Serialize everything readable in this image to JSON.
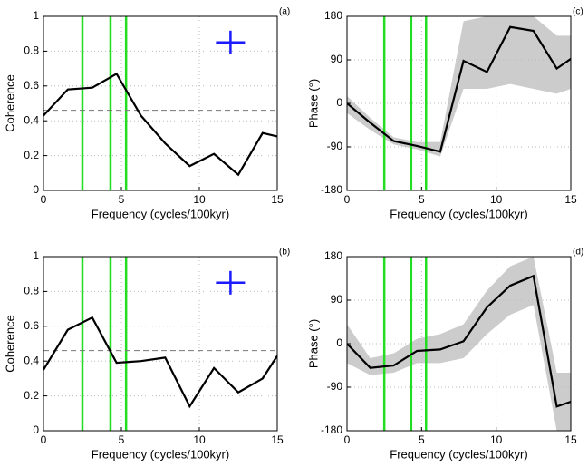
{
  "chart_data": [
    {
      "type": "line",
      "panel_label": "(a)",
      "xlabel": "Frequency (cycles/100kyr)",
      "ylabel": "Coherence",
      "x": [
        0,
        1.56,
        3.13,
        4.69,
        6.25,
        7.81,
        9.38,
        10.94,
        12.5,
        14.06,
        15
      ],
      "series": [
        {
          "color": "#000000",
          "values": [
            0.43,
            0.58,
            0.59,
            0.67,
            0.43,
            0.27,
            0.14,
            0.21,
            0.09,
            0.33,
            0.31
          ]
        }
      ],
      "xlim": [
        0,
        15
      ],
      "xticks": [
        0,
        5,
        10,
        15
      ],
      "ylim": [
        0,
        1
      ],
      "yticks": [
        0,
        0.2,
        0.4,
        0.6,
        0.8,
        1
      ],
      "grid": true,
      "vlines": [
        2.5,
        4.3,
        5.3
      ],
      "vline_color": "#22dd22",
      "threshold": 0.46,
      "cross": {
        "x": 12,
        "y": 0.85,
        "color": "#1a1aff"
      }
    },
    {
      "type": "line",
      "panel_label": "(c)",
      "xlabel": "Frequency (cycles/100kyr)",
      "ylabel": "Phase (°)",
      "x": [
        0,
        1.56,
        3.13,
        4.69,
        6.25,
        7.81,
        9.38,
        10.94,
        12.5,
        14.06,
        15
      ],
      "series": [
        {
          "color": "#000000",
          "values": [
            0,
            -40,
            -78,
            -88,
            -100,
            88,
            65,
            158,
            150,
            72,
            92
          ]
        }
      ],
      "band": {
        "color": "#cccccc",
        "lower": [
          -20,
          -55,
          -85,
          -95,
          -110,
          30,
          30,
          40,
          30,
          20,
          30
        ],
        "upper": [
          15,
          -30,
          -70,
          -80,
          -80,
          170,
          180,
          180,
          180,
          140,
          140
        ]
      },
      "xlim": [
        0,
        15
      ],
      "xticks": [
        0,
        5,
        10,
        15
      ],
      "ylim": [
        -180,
        180
      ],
      "yticks": [
        -180,
        -90,
        0,
        90,
        180
      ],
      "grid": true,
      "vlines": [
        2.5,
        4.3,
        5.3
      ],
      "vline_color": "#22dd22"
    },
    {
      "type": "line",
      "panel_label": "(b)",
      "xlabel": "Frequency (cycles/100kyr)",
      "ylabel": "Coherence",
      "x": [
        0,
        1.56,
        3.13,
        4.69,
        6.25,
        7.81,
        9.38,
        10.94,
        12.5,
        14.06,
        15
      ],
      "series": [
        {
          "color": "#000000",
          "values": [
            0.35,
            0.58,
            0.65,
            0.39,
            0.4,
            0.42,
            0.14,
            0.36,
            0.22,
            0.3,
            0.43
          ]
        }
      ],
      "xlim": [
        0,
        15
      ],
      "xticks": [
        0,
        5,
        10,
        15
      ],
      "ylim": [
        0,
        1
      ],
      "yticks": [
        0,
        0.2,
        0.4,
        0.6,
        0.8,
        1
      ],
      "grid": true,
      "vlines": [
        2.5,
        4.3,
        5.3
      ],
      "vline_color": "#22dd22",
      "threshold": 0.46,
      "cross": {
        "x": 12,
        "y": 0.85,
        "color": "#1a1aff"
      }
    },
    {
      "type": "line",
      "panel_label": "(d)",
      "xlabel": "Frequency (cycles/100kyr)",
      "ylabel": "Phase (°)",
      "x": [
        0,
        1.56,
        3.13,
        4.69,
        6.25,
        7.81,
        9.38,
        10.94,
        12.5,
        14.06,
        15
      ],
      "series": [
        {
          "color": "#000000",
          "values": [
            0,
            -50,
            -45,
            -15,
            -12,
            5,
            75,
            120,
            140,
            -130,
            -120
          ]
        }
      ],
      "band": {
        "color": "#cccccc",
        "lower": [
          -40,
          -65,
          -60,
          -40,
          -40,
          -30,
          20,
          60,
          80,
          -180,
          -180
        ],
        "upper": [
          40,
          -30,
          -20,
          10,
          20,
          40,
          110,
          160,
          180,
          -60,
          -60
        ]
      },
      "xlim": [
        0,
        15
      ],
      "xticks": [
        0,
        5,
        10,
        15
      ],
      "ylim": [
        -180,
        180
      ],
      "yticks": [
        -180,
        -90,
        0,
        90,
        180
      ],
      "grid": true,
      "vlines": [
        2.5,
        4.3,
        5.3
      ],
      "vline_color": "#22dd22"
    }
  ]
}
